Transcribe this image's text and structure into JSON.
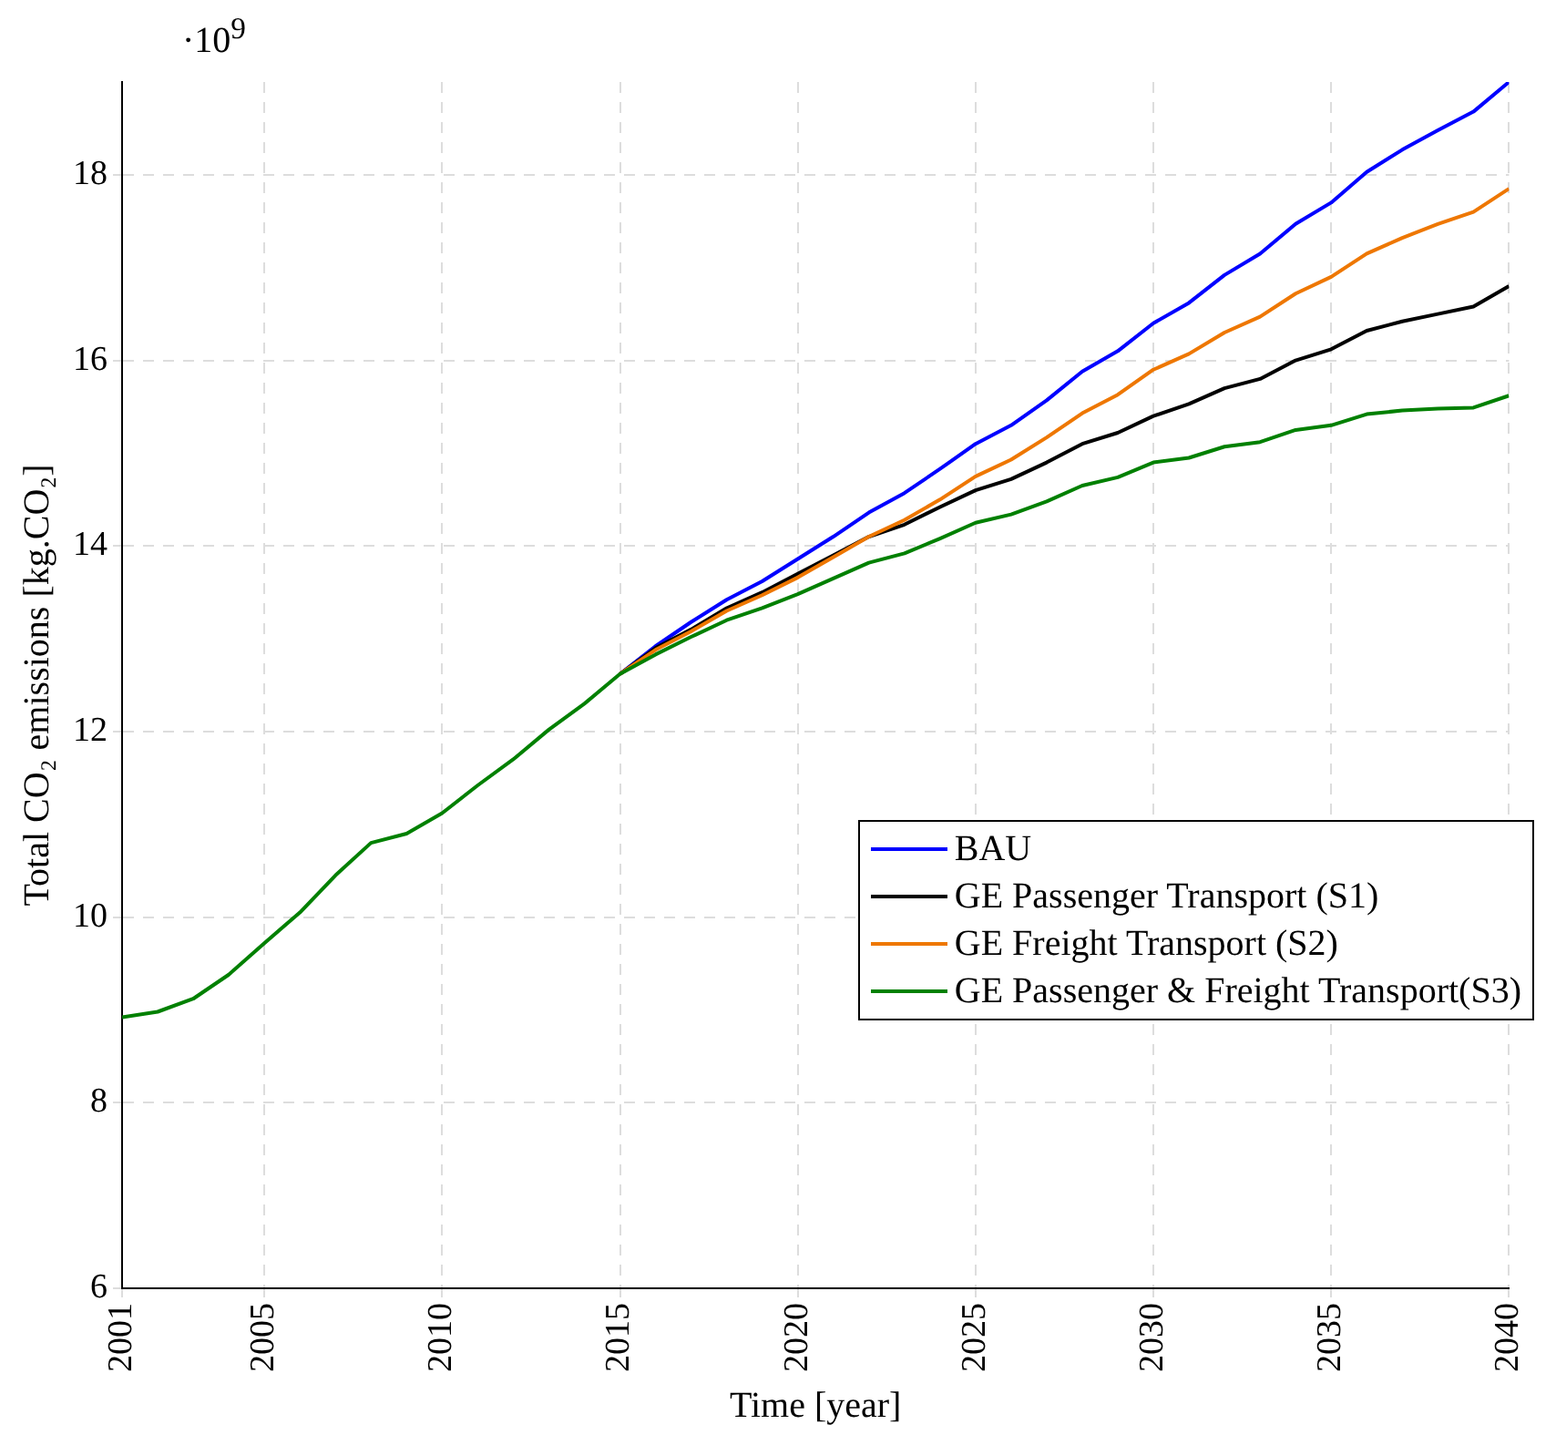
{
  "chart_data": {
    "type": "line",
    "xlabel": "Time [year]",
    "ylabel": "Total CO₂ emissions [kg.CO₂]",
    "annotations": [
      "·10$^{9}$"
    ],
    "x": [
      2001,
      2002,
      2003,
      2004,
      2005,
      2006,
      2007,
      2008,
      2009,
      2010,
      2011,
      2012,
      2013,
      2014,
      2015,
      2016,
      2017,
      2018,
      2019,
      2020,
      2021,
      2022,
      2023,
      2024,
      2025,
      2026,
      2027,
      2028,
      2029,
      2030,
      2031,
      2032,
      2033,
      2034,
      2035,
      2036,
      2037,
      2038,
      2039,
      2040
    ],
    "series": [
      {
        "name": "BAU",
        "color": "#0000ff",
        "values": [
          null,
          null,
          null,
          null,
          null,
          null,
          null,
          null,
          null,
          null,
          null,
          null,
          null,
          null,
          12.62,
          12.92,
          13.18,
          13.42,
          13.62,
          13.86,
          14.1,
          14.36,
          14.57,
          14.83,
          15.1,
          15.3,
          15.57,
          15.88,
          16.1,
          16.4,
          16.62,
          16.92,
          17.15,
          17.47,
          17.7,
          18.03,
          18.27,
          18.48,
          18.68,
          19.0
        ]
      },
      {
        "name": "GE Passenger Transport (S1)",
        "color": "#000000",
        "values": [
          null,
          null,
          null,
          null,
          null,
          null,
          null,
          null,
          null,
          null,
          null,
          null,
          null,
          null,
          12.62,
          12.9,
          13.1,
          13.33,
          13.5,
          13.7,
          13.9,
          14.1,
          14.23,
          14.42,
          14.6,
          14.72,
          14.9,
          15.1,
          15.22,
          15.4,
          15.53,
          15.7,
          15.8,
          16.0,
          16.12,
          16.32,
          16.42,
          16.5,
          16.58,
          16.8
        ]
      },
      {
        "name": "GE Freight Transport (S2)",
        "color": "#ee7700",
        "values": [
          null,
          null,
          null,
          null,
          null,
          null,
          null,
          null,
          null,
          null,
          null,
          null,
          null,
          null,
          12.62,
          12.88,
          13.08,
          13.3,
          13.47,
          13.66,
          13.88,
          14.1,
          14.28,
          14.5,
          14.75,
          14.93,
          15.17,
          15.43,
          15.63,
          15.9,
          16.07,
          16.3,
          16.47,
          16.72,
          16.9,
          17.15,
          17.32,
          17.47,
          17.6,
          17.85
        ]
      },
      {
        "name": "GE Passenger & Freight Transport(S3)",
        "color": "#008000",
        "values": [
          8.92,
          8.98,
          9.12,
          9.38,
          9.72,
          10.05,
          10.45,
          10.8,
          10.9,
          11.12,
          11.42,
          11.7,
          12.02,
          12.3,
          12.62,
          12.83,
          13.02,
          13.2,
          13.33,
          13.48,
          13.65,
          13.82,
          13.92,
          14.08,
          14.25,
          14.34,
          14.48,
          14.65,
          14.74,
          14.9,
          14.95,
          15.07,
          15.12,
          15.25,
          15.3,
          15.42,
          15.46,
          15.48,
          15.49,
          15.62
        ]
      }
    ],
    "xlim": [
      2001,
      2040
    ],
    "xticks": [
      2001,
      2005,
      2010,
      2015,
      2020,
      2025,
      2030,
      2035,
      2040
    ],
    "ylim": [
      6,
      19
    ],
    "yticks": [
      6,
      8,
      10,
      12,
      14,
      16,
      18
    ],
    "grid": true,
    "legend": "bottom right",
    "marker": "none",
    "line_style": "solid"
  }
}
